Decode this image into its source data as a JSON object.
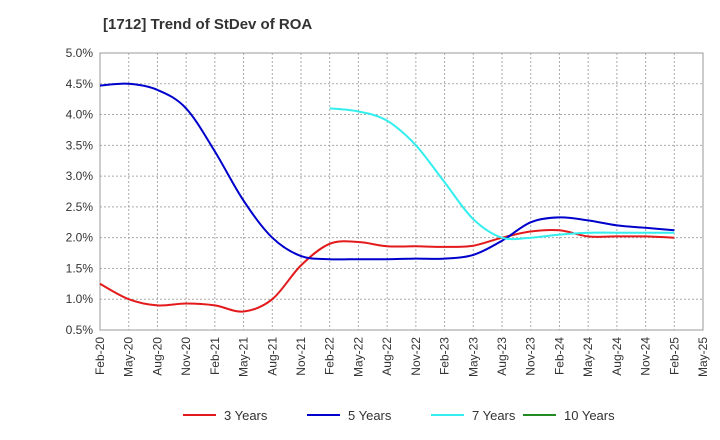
{
  "chart_data": {
    "type": "line",
    "title": "[1712]  Trend of StDev of ROA",
    "xlabel": "",
    "ylabel": "",
    "x": [
      "Feb-20",
      "May-20",
      "Aug-20",
      "Nov-20",
      "Feb-21",
      "May-21",
      "Aug-21",
      "Nov-21",
      "Feb-22",
      "May-22",
      "Aug-22",
      "Nov-22",
      "Feb-23",
      "May-23",
      "Aug-23",
      "Nov-23",
      "Feb-24",
      "May-24",
      "Aug-24",
      "Nov-24",
      "Feb-25",
      "May-25"
    ],
    "ylim": [
      0.5,
      5.0
    ],
    "yticks": [
      "0.5%",
      "1.0%",
      "1.5%",
      "2.0%",
      "2.5%",
      "3.0%",
      "3.5%",
      "4.0%",
      "4.5%",
      "5.0%"
    ],
    "grid": true,
    "legend_position": "bottom",
    "series": [
      {
        "name": "3 Years",
        "color": "#e31a1c",
        "values": [
          1.25,
          1.0,
          0.9,
          0.93,
          0.9,
          0.8,
          1.0,
          1.55,
          1.9,
          1.93,
          1.86,
          1.86,
          1.85,
          1.87,
          2.0,
          2.1,
          2.12,
          2.02,
          2.02,
          2.02,
          2.0,
          null
        ]
      },
      {
        "name": "5 Years",
        "color": "#0000cc",
        "values": [
          4.47,
          4.5,
          4.4,
          4.1,
          3.4,
          2.6,
          2.0,
          1.7,
          1.65,
          1.65,
          1.65,
          1.66,
          1.66,
          1.72,
          1.95,
          2.25,
          2.33,
          2.28,
          2.2,
          2.16,
          2.12,
          null
        ]
      },
      {
        "name": "7 Years",
        "color": "#33eeee",
        "values": [
          null,
          null,
          null,
          null,
          null,
          null,
          null,
          null,
          4.1,
          4.05,
          3.9,
          3.5,
          2.9,
          2.3,
          2.0,
          2.0,
          2.05,
          2.08,
          2.08,
          2.08,
          2.08,
          null
        ]
      },
      {
        "name": "10 Years",
        "color": "#228b22",
        "values": [
          null,
          null,
          null,
          null,
          null,
          null,
          null,
          null,
          null,
          null,
          null,
          null,
          null,
          null,
          null,
          null,
          null,
          null,
          null,
          null,
          null,
          null
        ]
      }
    ]
  }
}
